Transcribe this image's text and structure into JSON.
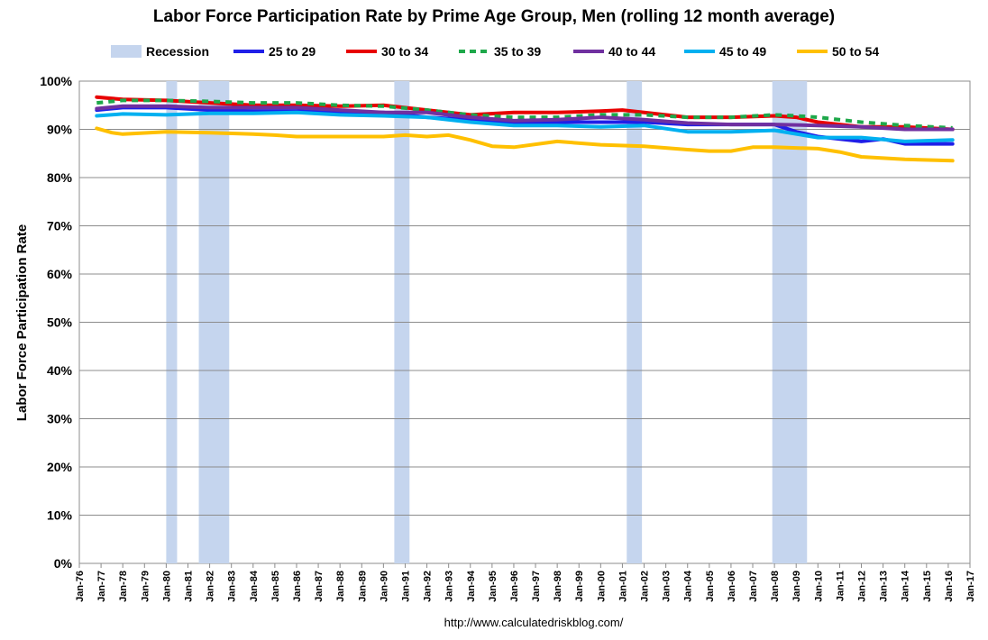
{
  "chart_data": {
    "type": "line",
    "title": "Labor Force Participation Rate by Prime Age Group, Men (rolling 12 month average)",
    "ylabel": "Labor Force Participation Rate",
    "xlabel": "",
    "source": "http://www.calculatedriskblog.com/",
    "ylim": [
      0,
      100
    ],
    "yticks": [
      0,
      10,
      20,
      30,
      40,
      50,
      60,
      70,
      80,
      90,
      100
    ],
    "ytick_labels": [
      "0%",
      "10%",
      "20%",
      "30%",
      "40%",
      "50%",
      "60%",
      "70%",
      "80%",
      "90%",
      "100%"
    ],
    "xlim": [
      1976,
      2017
    ],
    "xtick_labels": [
      "Jan-76",
      "Jan-77",
      "Jan-78",
      "Jan-79",
      "Jan-80",
      "Jan-81",
      "Jan-82",
      "Jan-83",
      "Jan-84",
      "Jan-85",
      "Jan-86",
      "Jan-87",
      "Jan-88",
      "Jan-89",
      "Jan-90",
      "Jan-91",
      "Jan-92",
      "Jan-93",
      "Jan-94",
      "Jan-95",
      "Jan-96",
      "Jan-97",
      "Jan-98",
      "Jan-99",
      "Jan-00",
      "Jan-01",
      "Jan-02",
      "Jan-03",
      "Jan-04",
      "Jan-05",
      "Jan-06",
      "Jan-07",
      "Jan-08",
      "Jan-09",
      "Jan-10",
      "Jan-11",
      "Jan-12",
      "Jan-13",
      "Jan-14",
      "Jan-15",
      "Jan-16",
      "Jan-17"
    ],
    "grid": true,
    "legend_position": "top",
    "recession_label": "Recession",
    "recession_color": "#c5d5ee",
    "recessions": [
      [
        1980.0,
        1980.5
      ],
      [
        1981.5,
        1982.9
      ],
      [
        1990.5,
        1991.2
      ],
      [
        2001.2,
        2001.9
      ],
      [
        2007.9,
        2009.5
      ]
    ],
    "series": [
      {
        "name": "25 to 29",
        "color": "#1f1fe8",
        "dashed": false,
        "x": [
          1976.8,
          1978,
          1980,
          1982,
          1984,
          1986,
          1988,
          1990,
          1992,
          1994,
          1996,
          1998,
          2000,
          2002,
          2004,
          2006,
          2008,
          2009,
          2010,
          2012,
          2013,
          2014,
          2015,
          2016.2
        ],
        "y": [
          94.0,
          94.5,
          94.5,
          94.0,
          93.8,
          93.8,
          93.5,
          93.5,
          92.5,
          92.0,
          91.5,
          91.5,
          91.5,
          91.5,
          91.0,
          91.0,
          91.0,
          89.5,
          88.5,
          87.5,
          88.0,
          87.0,
          87.0,
          87.0
        ]
      },
      {
        "name": "30 to 34",
        "color": "#e80000",
        "dashed": false,
        "x": [
          1976.8,
          1978,
          1980,
          1982,
          1984,
          1986,
          1988,
          1990,
          1992,
          1994,
          1996,
          1998,
          2000,
          2001,
          2002,
          2004,
          2006,
          2008,
          2009,
          2010,
          2012,
          2014,
          2016.2
        ],
        "y": [
          96.7,
          96.2,
          96.0,
          95.5,
          95.0,
          95.0,
          94.8,
          95.0,
          94.0,
          93.0,
          93.5,
          93.5,
          93.8,
          94.0,
          93.5,
          92.5,
          92.5,
          92.8,
          92.5,
          91.5,
          90.5,
          90.5,
          90.0
        ]
      },
      {
        "name": "35 to 39",
        "color": "#1ea84a",
        "dashed": true,
        "x": [
          1976.8,
          1978,
          1980,
          1982,
          1984,
          1986,
          1988,
          1990,
          1992,
          1994,
          1996,
          1998,
          2000,
          2002,
          2004,
          2006,
          2008,
          2009,
          2010,
          2012,
          2014,
          2016.2
        ],
        "y": [
          95.5,
          96.0,
          96.0,
          95.8,
          95.5,
          95.5,
          95.0,
          94.8,
          94.0,
          93.0,
          92.5,
          92.5,
          93.0,
          93.0,
          92.5,
          92.5,
          93.0,
          92.8,
          92.5,
          91.5,
          90.8,
          90.3
        ]
      },
      {
        "name": "40 to 44",
        "color": "#7030a0",
        "dashed": false,
        "x": [
          1976.8,
          1978,
          1980,
          1982,
          1984,
          1986,
          1988,
          1990,
          1992,
          1994,
          1996,
          1998,
          2000,
          2002,
          2004,
          2006,
          2008,
          2010,
          2012,
          2014,
          2016.2
        ],
        "y": [
          94.3,
          94.8,
          94.8,
          94.5,
          94.5,
          94.5,
          94.0,
          93.5,
          93.5,
          92.5,
          91.8,
          92.0,
          92.5,
          92.0,
          91.3,
          91.0,
          91.0,
          90.8,
          90.5,
          90.0,
          90.0
        ]
      },
      {
        "name": "45 to 49",
        "color": "#00b0f0",
        "dashed": false,
        "x": [
          1976.8,
          1978,
          1980,
          1982,
          1984,
          1986,
          1988,
          1990,
          1992,
          1994,
          1996,
          1998,
          2000,
          2002,
          2004,
          2006,
          2008,
          2010,
          2012,
          2014,
          2016.2
        ],
        "y": [
          92.8,
          93.2,
          93.0,
          93.3,
          93.3,
          93.5,
          93.0,
          92.8,
          92.5,
          91.5,
          90.8,
          90.8,
          90.5,
          90.8,
          89.5,
          89.5,
          89.8,
          88.3,
          88.3,
          87.5,
          87.8
        ]
      },
      {
        "name": "50 to 54",
        "color": "#ffc000",
        "dashed": false,
        "x": [
          1976.8,
          1977.5,
          1978,
          1980,
          1982,
          1984,
          1985,
          1986,
          1988,
          1990,
          1991,
          1992,
          1993,
          1994,
          1995,
          1996,
          1998,
          2000,
          2002,
          2004,
          2005,
          2006,
          2007,
          2008,
          2010,
          2011,
          2012,
          2014,
          2016.2
        ],
        "y": [
          90.2,
          89.3,
          89.0,
          89.5,
          89.3,
          89.0,
          88.8,
          88.5,
          88.5,
          88.5,
          88.8,
          88.5,
          88.8,
          87.8,
          86.5,
          86.3,
          87.5,
          86.8,
          86.5,
          85.8,
          85.5,
          85.5,
          86.3,
          86.3,
          86.0,
          85.3,
          84.3,
          83.8,
          83.5
        ]
      }
    ]
  }
}
